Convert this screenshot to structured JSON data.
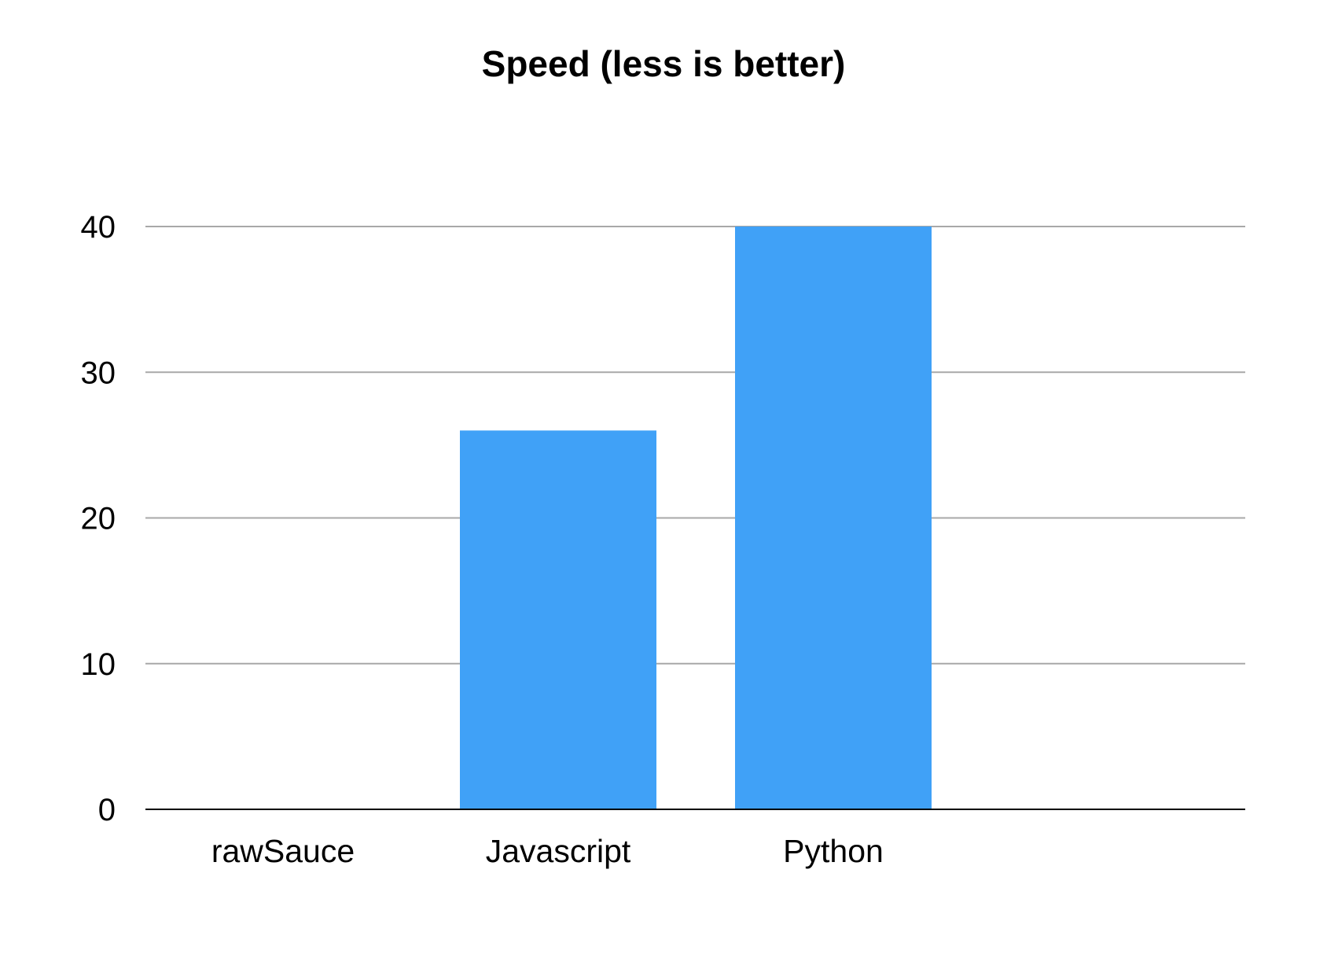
{
  "chart_data": {
    "type": "bar",
    "title": "Speed (less is better)",
    "categories": [
      "rawSauce",
      "Javascript",
      "Python"
    ],
    "values": [
      0,
      26,
      40
    ],
    "xlabel": "",
    "ylabel": "",
    "ylim": [
      0,
      40
    ],
    "yticks": [
      "0",
      "10",
      "20",
      "30",
      "40"
    ],
    "bar_color": "#40a1f7",
    "grid": true,
    "legend": "none"
  }
}
